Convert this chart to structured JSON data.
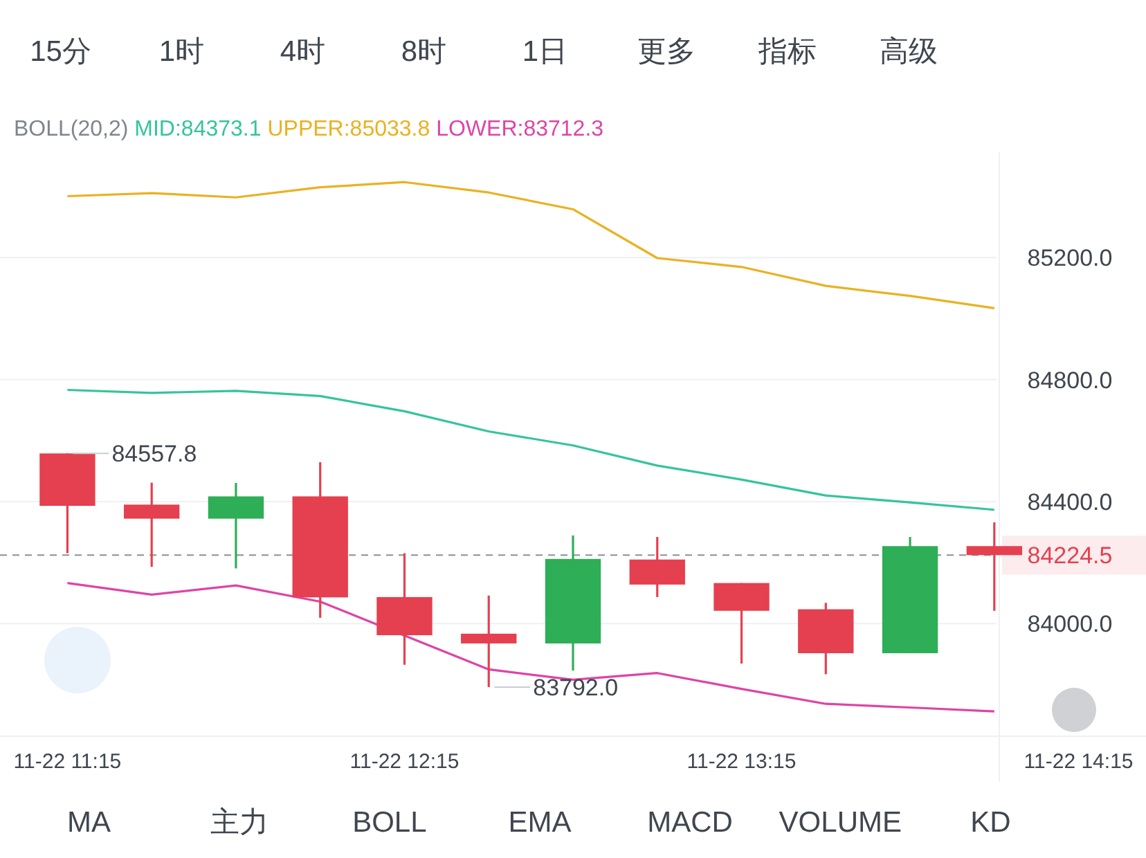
{
  "chart_data": [
    {
      "type": "other",
      "annotations": [
        "15分",
        "1时",
        "4时",
        "8时",
        "1日",
        "更多",
        "指标",
        "高级"
      ]
    },
    {
      "type": "candlestick",
      "legend_title": "BOLL(20,2)",
      "legend": "top left",
      "categories": [
        "11-22 11:15",
        null,
        null,
        null,
        "11-22 12:15",
        null,
        null,
        null,
        "11-22 13:15",
        null,
        null,
        null,
        "11-22 14:15"
      ],
      "ohlc": [
        [
          84557.8,
          84557.8,
          84231,
          84386
        ],
        [
          84390,
          84462,
          84186,
          84344
        ],
        [
          84344,
          84461,
          84181,
          84417
        ],
        [
          84417,
          84529,
          84019,
          84086
        ],
        [
          84087,
          84231,
          83865,
          83962
        ],
        [
          83967,
          84092,
          83792,
          83935
        ],
        [
          83935,
          84289,
          83846,
          84212
        ],
        [
          84210,
          84284,
          84087,
          84128
        ],
        [
          84133,
          84133,
          83869,
          84042
        ],
        [
          84047,
          84068,
          83834,
          83903
        ],
        [
          83903,
          84284,
          83903,
          84254
        ],
        [
          84254,
          84332,
          84042,
          84224.5
        ],
        null
      ],
      "colors": [
        "#e5404f",
        "#e5404f",
        "#2eae57",
        "#e5404f",
        "#e5404f",
        "#e5404f",
        "#2eae57",
        "#e5404f",
        "#e5404f",
        "#e5404f",
        "#2eae57",
        "#e5404f",
        null
      ],
      "series": [
        {
          "name": "MID:84373.1",
          "type": "line",
          "color": "#35c49c",
          "values": [
            84766,
            84756,
            84763,
            84746,
            84696,
            84630,
            84584,
            84518,
            84472,
            84420,
            84397,
            84373.1,
            null
          ]
        },
        {
          "name": "UPPER:85033.8",
          "type": "line",
          "color": "#eab122",
          "values": [
            85401,
            85411,
            85397,
            85430,
            85447,
            85413,
            85358,
            85198,
            85169,
            85107,
            85074,
            85033.8,
            null
          ]
        },
        {
          "name": "LOWER:83712.3",
          "type": "line",
          "color": "#de44a6",
          "values": [
            84133,
            84095,
            84125,
            84072,
            null,
            83850,
            83816,
            83838,
            83786,
            83737,
            83725,
            83712.3,
            null
          ]
        }
      ],
      "ylim": [
        83640,
        85545
      ],
      "yticks": [
        {
          "value": 84000,
          "label": "84000.0"
        },
        {
          "value": 84400,
          "label": "84400.0"
        },
        {
          "value": 84800,
          "label": "84800.0"
        },
        {
          "value": 85200,
          "label": "85200.0"
        }
      ],
      "grid": "y",
      "ref_lines": [
        {
          "axis": "y",
          "value": 84224.5,
          "label": "84224.5",
          "color": "#8a8f98",
          "line_style": "dashed"
        }
      ],
      "annotations": [
        {
          "text": "84557.8",
          "x": "11-22 11:15",
          "y": 84557.8
        },
        {
          "text": "83792.0",
          "y": 83792
        }
      ]
    },
    {
      "type": "other",
      "annotations": [
        "MA",
        "主力",
        "BOLL",
        "EMA",
        "MACD",
        "VOLUME",
        "KD"
      ]
    }
  ]
}
